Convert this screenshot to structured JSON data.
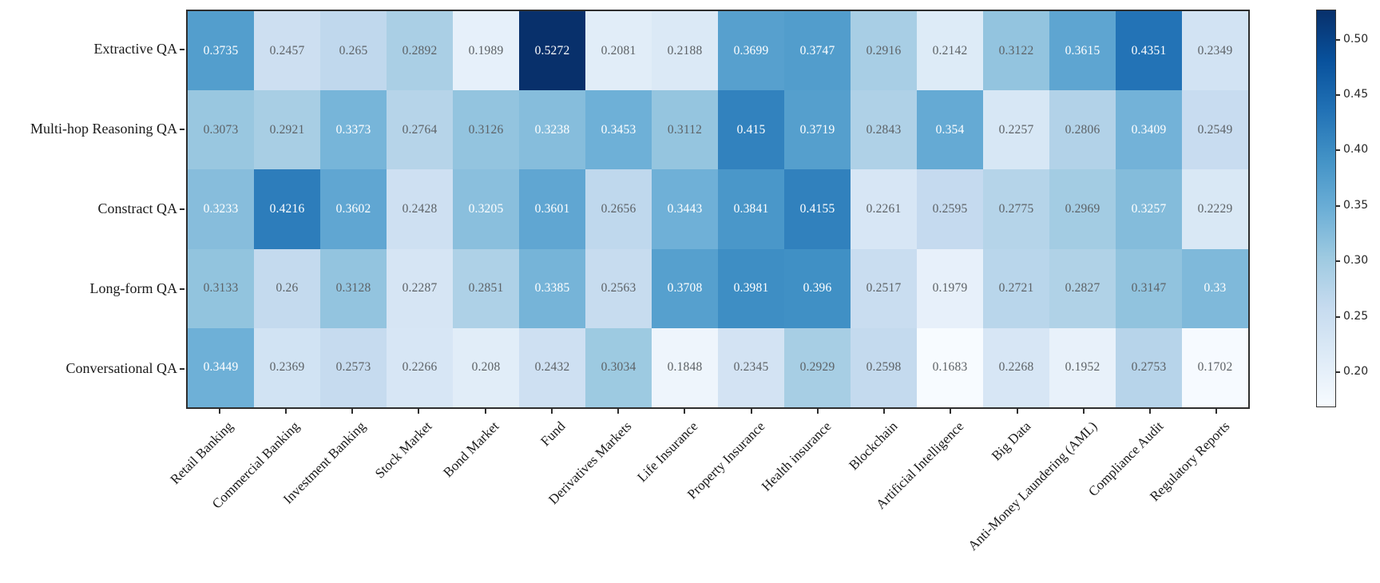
{
  "chart_data": {
    "type": "heatmap",
    "title": "",
    "xlabel": "",
    "ylabel": "",
    "rows": [
      "Extractive QA",
      "Multi-hop Reasoning QA",
      "Constract QA",
      "Long-form QA",
      "Conversational QA"
    ],
    "columns": [
      "Retail Banking",
      "Commercial Banking",
      "Investment Banking",
      "Stock Market",
      "Bond Market",
      "Fund",
      "Derivatives Markets",
      "Life Insurance",
      "Property Insurance",
      "Health insurance",
      "Blockchain",
      "Artificial Intelligence",
      "Big Data",
      "Anti-Money Laundering (AML)",
      "Compliance Audit",
      "Regulatory Reports"
    ],
    "values": [
      [
        0.3735,
        0.2457,
        0.265,
        0.2892,
        0.1989,
        0.5272,
        0.2081,
        0.2188,
        0.3699,
        0.3747,
        0.2916,
        0.2142,
        0.3122,
        0.3615,
        0.4351,
        0.2349
      ],
      [
        0.3073,
        0.2921,
        0.3373,
        0.2764,
        0.3126,
        0.3238,
        0.3453,
        0.3112,
        0.415,
        0.3719,
        0.2843,
        0.354,
        0.2257,
        0.2806,
        0.3409,
        0.2549
      ],
      [
        0.3233,
        0.4216,
        0.3602,
        0.2428,
        0.3205,
        0.3601,
        0.2656,
        0.3443,
        0.3841,
        0.4155,
        0.2261,
        0.2595,
        0.2775,
        0.2969,
        0.3257,
        0.2229
      ],
      [
        0.3133,
        0.26,
        0.3128,
        0.2287,
        0.2851,
        0.3385,
        0.2563,
        0.3708,
        0.3981,
        0.396,
        0.2517,
        0.1979,
        0.2721,
        0.2827,
        0.3147,
        0.33
      ],
      [
        0.3449,
        0.2369,
        0.2573,
        0.2266,
        0.208,
        0.2432,
        0.3034,
        0.1848,
        0.2345,
        0.2929,
        0.2598,
        0.1683,
        0.2268,
        0.1952,
        0.2753,
        0.1702
      ]
    ],
    "vmin": 0.1683,
    "vmax": 0.5272,
    "colorbar_ticks": [
      0.5,
      0.45,
      0.4,
      0.35,
      0.3,
      0.25,
      0.2
    ],
    "colormap": {
      "name": "Blues",
      "stops": [
        {
          "t": 0.0,
          "color": "#f7fbff"
        },
        {
          "t": 0.125,
          "color": "#deebf7"
        },
        {
          "t": 0.25,
          "color": "#c6dbef"
        },
        {
          "t": 0.375,
          "color": "#9ecae1"
        },
        {
          "t": 0.5,
          "color": "#6baed6"
        },
        {
          "t": 0.625,
          "color": "#4292c6"
        },
        {
          "t": 0.75,
          "color": "#2171b5"
        },
        {
          "t": 0.875,
          "color": "#08519c"
        },
        {
          "t": 1.0,
          "color": "#08306b"
        }
      ]
    },
    "annotation_white_threshold": 0.317,
    "colors": {
      "annot_light": "#ffffff",
      "annot_dark": "#5d6266",
      "spine": "#2e2e2e",
      "background": "#ffffff"
    },
    "legend_position": "right-colorbar",
    "grid": false
  }
}
